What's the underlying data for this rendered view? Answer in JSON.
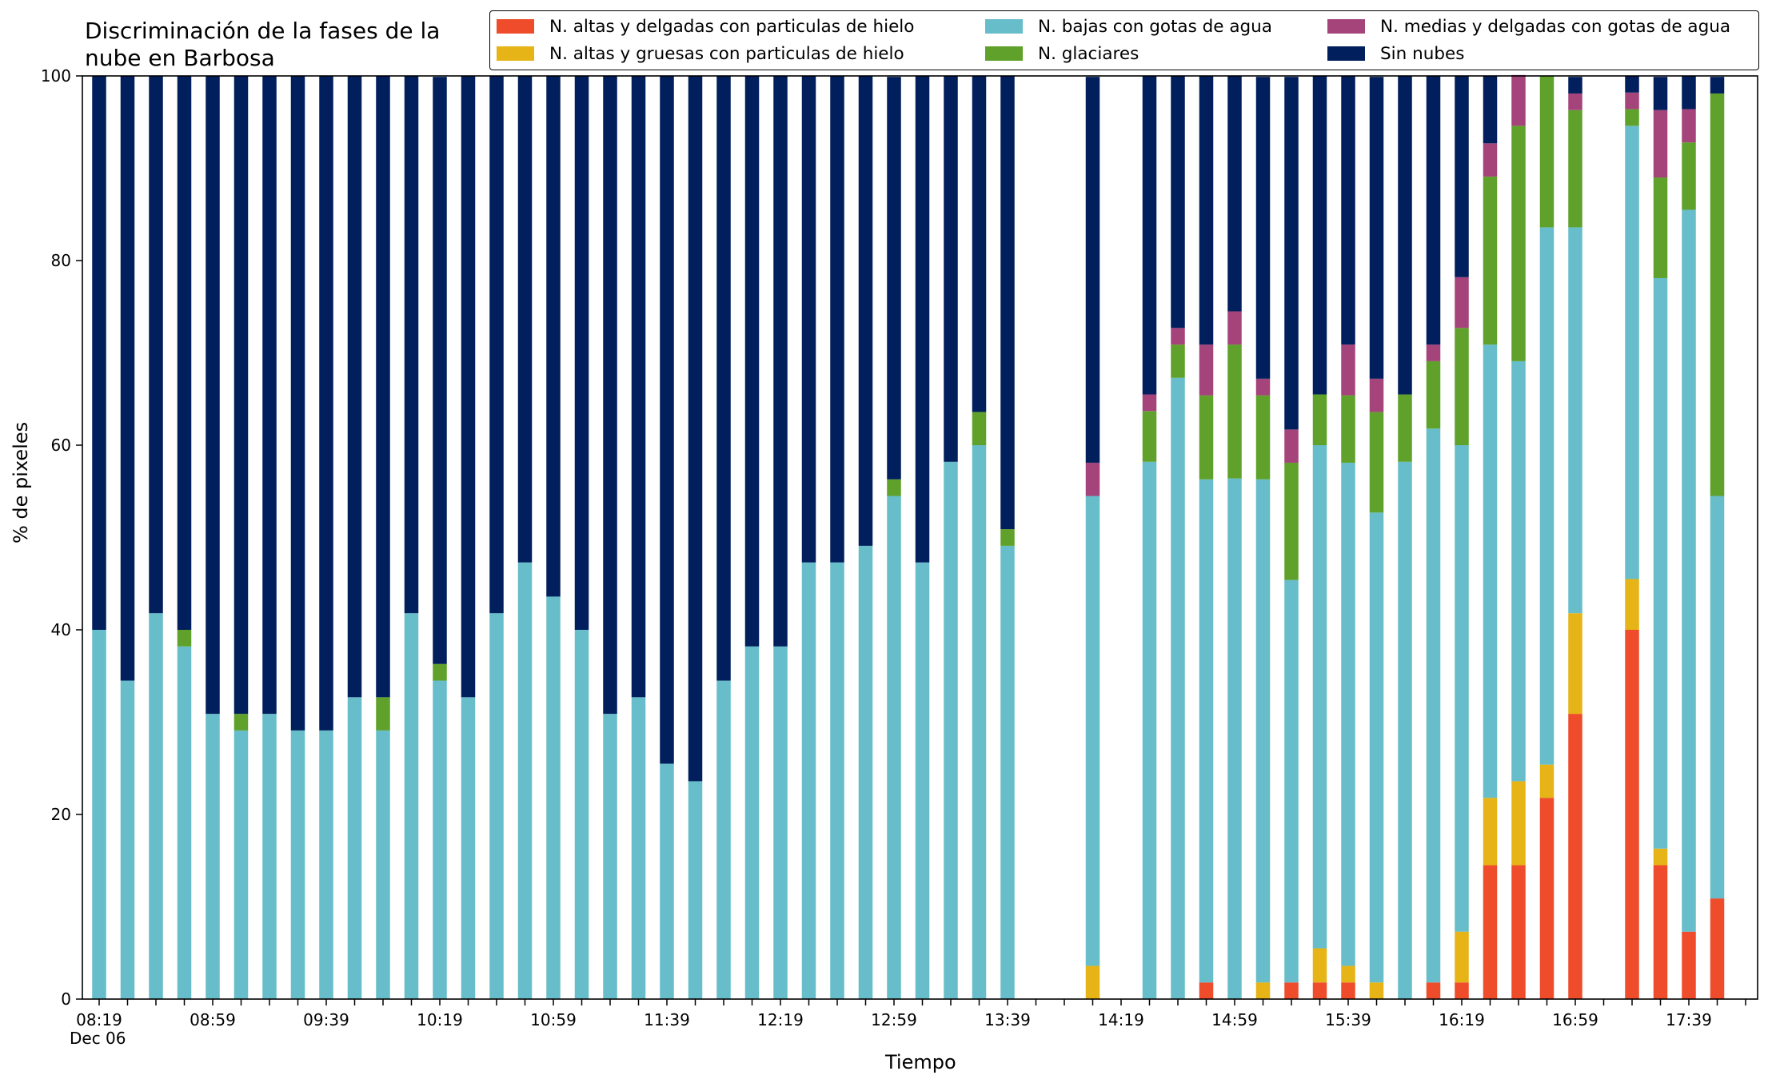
{
  "chart_data": {
    "type": "bar",
    "stacked": true,
    "title": "Discriminación de la fases de la\nnube en Barbosa",
    "xlabel": "Tiempo",
    "ylabel": "% de pixeles",
    "ylim": [
      0,
      100
    ],
    "yticks": [
      0,
      20,
      40,
      60,
      80,
      100
    ],
    "xtick_labels": [
      "08:19\nDec 06",
      "08:59",
      "09:39",
      "10:19",
      "10:59",
      "11:39",
      "12:19",
      "12:59",
      "13:39",
      "14:19",
      "14:59",
      "15:39",
      "16:19",
      "16:59",
      "17:39"
    ],
    "xtick_every": 4,
    "legend_position": "top",
    "categories": [
      "08:19",
      "08:29",
      "08:39",
      "08:49",
      "08:59",
      "09:09",
      "09:19",
      "09:29",
      "09:39",
      "09:49",
      "09:59",
      "10:09",
      "10:19",
      "10:29",
      "10:39",
      "10:49",
      "10:59",
      "11:09",
      "11:19",
      "11:29",
      "11:39",
      "11:49",
      "11:59",
      "12:09",
      "12:19",
      "12:29",
      "12:39",
      "12:49",
      "12:59",
      "13:09",
      "13:19",
      "13:29",
      "13:39",
      "13:49",
      "13:59",
      "14:09",
      "14:19",
      "14:29",
      "14:39",
      "14:49",
      "14:59",
      "15:09",
      "15:19",
      "15:29",
      "15:39",
      "15:49",
      "15:59",
      "16:09",
      "16:19",
      "16:29",
      "16:39",
      "16:49",
      "16:59",
      "17:09",
      "17:19",
      "17:29",
      "17:39",
      "17:49"
    ],
    "series": [
      {
        "name": "N. altas y delgadas con particulas de hielo",
        "color": "#ee4c2a",
        "values": [
          0,
          0,
          0,
          0,
          0,
          0,
          0,
          0,
          0,
          0,
          0,
          0,
          0,
          0,
          0,
          0,
          0,
          0,
          0,
          0,
          0,
          0,
          0,
          0,
          0,
          0,
          0,
          0,
          0,
          0,
          0,
          0,
          0,
          0,
          0,
          0,
          0,
          0,
          0,
          1.8,
          0,
          0,
          1.8,
          1.8,
          1.8,
          0,
          0,
          1.8,
          1.8,
          14.5,
          14.5,
          21.8,
          30.9,
          0,
          40,
          14.5,
          7.3,
          10.9
        ]
      },
      {
        "name": "N. altas y gruesas con particulas de hielo",
        "color": "#e6b416",
        "values": [
          0,
          0,
          0,
          0,
          0,
          0,
          0,
          0,
          0,
          0,
          0,
          0,
          0,
          0,
          0,
          0,
          0,
          0,
          0,
          0,
          0,
          0,
          0,
          0,
          0,
          0,
          0,
          0,
          0,
          0,
          0,
          0,
          0,
          0,
          0,
          3.6,
          0,
          0,
          0,
          0,
          0,
          1.8,
          0,
          3.7,
          1.8,
          1.8,
          0,
          0,
          5.5,
          7.3,
          9.1,
          3.6,
          10.9,
          0,
          5.5,
          1.8,
          0,
          0
        ]
      },
      {
        "name": "N. bajas con gotas de agua",
        "color": "#67bdc9",
        "values": [
          40,
          34.5,
          41.8,
          38.2,
          30.9,
          29.1,
          30.9,
          29.1,
          29.1,
          32.7,
          29.1,
          41.8,
          34.5,
          32.7,
          41.8,
          47.3,
          43.6,
          40,
          30.9,
          32.7,
          25.5,
          23.6,
          34.5,
          38.2,
          38.2,
          47.3,
          47.3,
          49.1,
          54.5,
          47.3,
          58.2,
          60,
          49.1,
          0,
          0,
          50.9,
          0,
          58.2,
          67.3,
          54.5,
          56.4,
          54.5,
          43.6,
          54.5,
          54.5,
          50.9,
          58.2,
          60,
          52.7,
          49.1,
          45.5,
          58.2,
          41.8,
          0,
          49.1,
          61.8,
          78.2,
          43.6
        ]
      },
      {
        "name": "N. glaciares",
        "color": "#5fa12a",
        "values": [
          0,
          0,
          0,
          1.8,
          0,
          1.8,
          0,
          0,
          0,
          0,
          3.6,
          0,
          1.8,
          0,
          0,
          0,
          0,
          0,
          0,
          0,
          0,
          0,
          0,
          0,
          0,
          0,
          0,
          0,
          1.8,
          0,
          0,
          3.6,
          1.8,
          0,
          0,
          0,
          0,
          5.5,
          3.6,
          9.1,
          14.5,
          9.1,
          12.7,
          5.5,
          7.3,
          10.9,
          7.3,
          7.3,
          12.7,
          18.2,
          25.5,
          16.4,
          12.7,
          0,
          1.8,
          10.9,
          7.3,
          43.6
        ]
      },
      {
        "name": "N. medias y delgadas con gotas de agua",
        "color": "#a5437b",
        "values": [
          0,
          0,
          0,
          0,
          0,
          0,
          0,
          0,
          0,
          0,
          0,
          0,
          0,
          0,
          0,
          0,
          0,
          0,
          0,
          0,
          0,
          0,
          0,
          0,
          0,
          0,
          0,
          0,
          0,
          0,
          0,
          0,
          0,
          0,
          0,
          3.6,
          0,
          1.8,
          1.8,
          5.5,
          3.6,
          1.8,
          3.6,
          0,
          5.5,
          3.6,
          0,
          1.8,
          5.5,
          3.6,
          5.5,
          0,
          1.8,
          0,
          1.8,
          7.3,
          3.6,
          0
        ]
      },
      {
        "name": "Sin nubes",
        "color": "#001f5c",
        "values": [
          60,
          65.5,
          58.2,
          60,
          69.1,
          69.1,
          69.1,
          70.9,
          70.9,
          67.3,
          67.3,
          58.2,
          63.6,
          67.3,
          58.2,
          52.7,
          56.4,
          60,
          69.1,
          67.3,
          74.5,
          76.4,
          65.5,
          61.8,
          61.8,
          52.7,
          52.7,
          50.9,
          43.6,
          52.7,
          41.8,
          36.4,
          49.1,
          0,
          0,
          41.8,
          0,
          34.5,
          27.3,
          29.1,
          25.5,
          32.7,
          38.2,
          34.5,
          29.1,
          32.7,
          34.5,
          29.1,
          21.8,
          7.3,
          0,
          0,
          1.8,
          0,
          1.8,
          3.6,
          3.6,
          1.8
        ]
      }
    ]
  }
}
